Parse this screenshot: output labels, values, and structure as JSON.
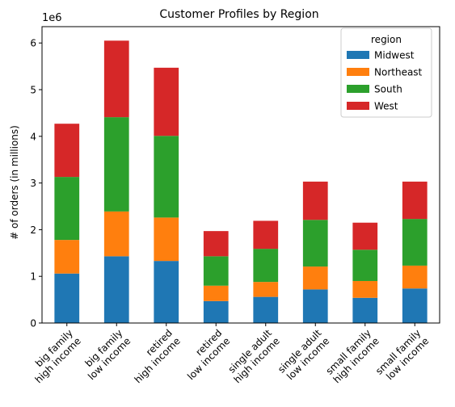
{
  "chart_data": {
    "type": "bar",
    "stacked": true,
    "title": "Customer Profiles by Region",
    "xlabel": "",
    "ylabel": "# of orders (in millions)",
    "y_offset_label": "1e6",
    "ylim": [
      0,
      6.35
    ],
    "yticks": [
      0,
      1,
      2,
      3,
      4,
      5,
      6
    ],
    "grid": false,
    "legend": {
      "title": "region",
      "placement": "top-right"
    },
    "categories": [
      [
        "big family",
        "high income"
      ],
      [
        "big family",
        "low income"
      ],
      [
        "retired",
        "high income"
      ],
      [
        "retired",
        "low income"
      ],
      [
        "single adult",
        "high income"
      ],
      [
        "single adult",
        "low income"
      ],
      [
        "small family",
        "high income"
      ],
      [
        "small family",
        "low income"
      ]
    ],
    "series": [
      {
        "name": "Midwest",
        "color": "#1f77b4",
        "values": [
          1.06,
          1.43,
          1.33,
          0.47,
          0.56,
          0.72,
          0.54,
          0.74
        ]
      },
      {
        "name": "Northeast",
        "color": "#ff7f0e",
        "values": [
          0.72,
          0.96,
          0.93,
          0.33,
          0.32,
          0.49,
          0.36,
          0.49
        ]
      },
      {
        "name": "South",
        "color": "#2ca02c",
        "values": [
          1.35,
          2.02,
          1.75,
          0.63,
          0.71,
          1.0,
          0.67,
          1.0
        ]
      },
      {
        "name": "West",
        "color": "#d62728",
        "values": [
          1.14,
          1.64,
          1.46,
          0.54,
          0.6,
          0.82,
          0.58,
          0.8
        ]
      }
    ]
  }
}
